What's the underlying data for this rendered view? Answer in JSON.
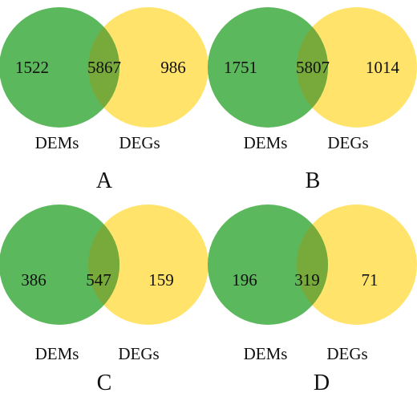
{
  "colors": {
    "left": "#5cb85c",
    "right": "#ffe36a",
    "overlap": "#77aa3a"
  },
  "panels": [
    {
      "label": "A",
      "left_label": "DEMs",
      "right_label": "DEGs",
      "left_only": "1522",
      "overlap": "5867",
      "right_only": "986"
    },
    {
      "label": "B",
      "left_label": "DEMs",
      "right_label": "DEGs",
      "left_only": "1751",
      "overlap": "5807",
      "right_only": "1014"
    },
    {
      "label": "C",
      "left_label": "DEMs",
      "right_label": "DEGs",
      "left_only": "386",
      "overlap": "547",
      "right_only": "159"
    },
    {
      "label": "D",
      "left_label": "DEMs",
      "right_label": "DEGs",
      "left_only": "196",
      "overlap": "319",
      "right_only": "71"
    }
  ]
}
